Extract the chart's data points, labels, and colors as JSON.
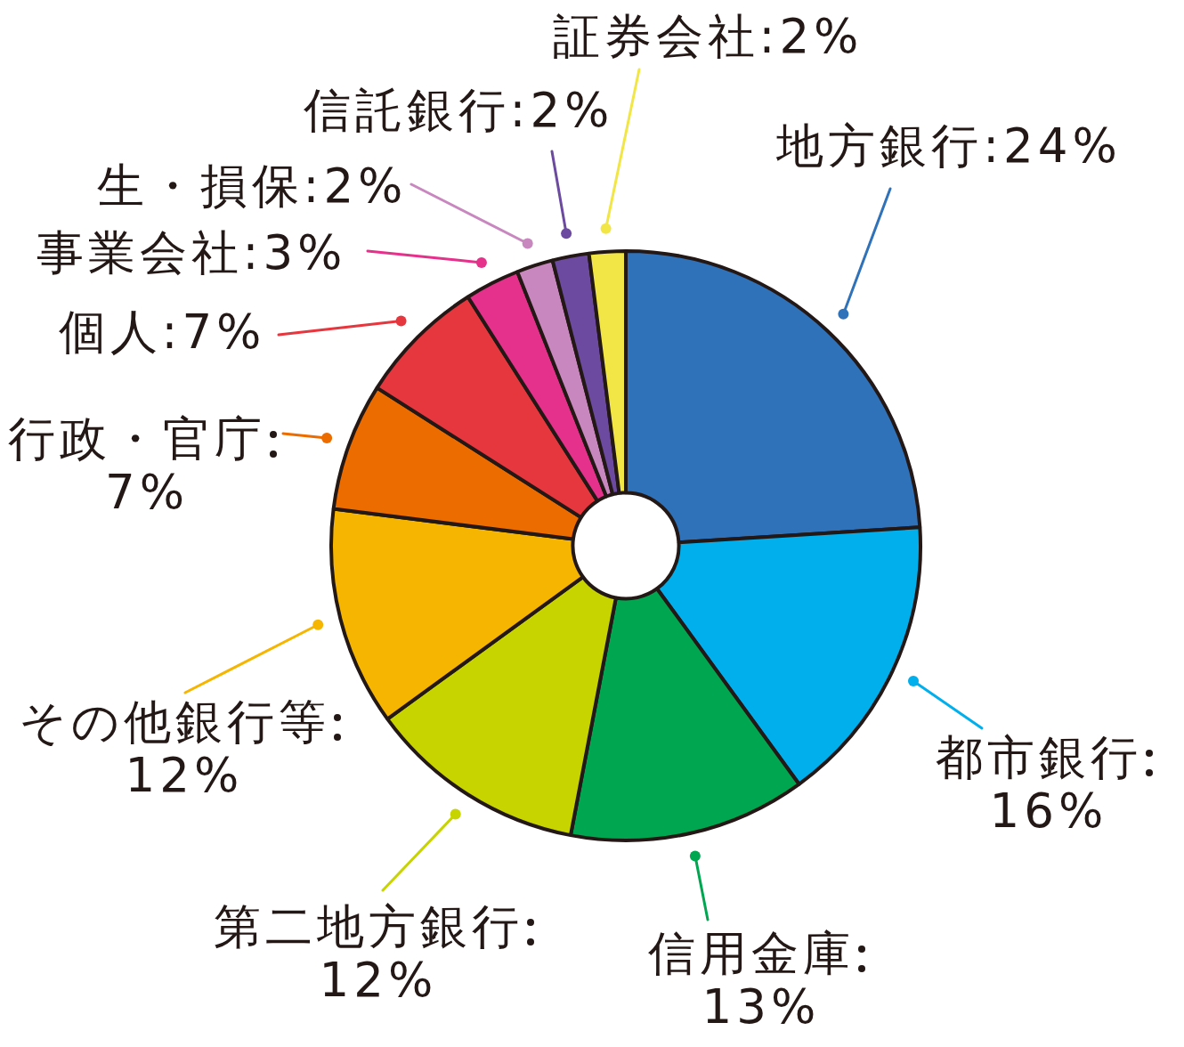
{
  "chart_data": {
    "type": "donut",
    "categories": [
      "地方銀行",
      "都市銀行",
      "信用金庫",
      "第二地方銀行",
      "その他銀行等",
      "行政・官庁",
      "個人",
      "事業会社",
      "生・損保",
      "信託銀行",
      "証券会社"
    ],
    "values": [
      24,
      16,
      13,
      12,
      12,
      7,
      7,
      3,
      2,
      2,
      2
    ],
    "colors": [
      "#2f72b9",
      "#00afec",
      "#00a650",
      "#c8d400",
      "#f6b500",
      "#ec6c00",
      "#e6373e",
      "#e5318b",
      "#c887be",
      "#6b4aa0",
      "#f1e645"
    ],
    "value_labels": [
      "24%",
      "16%",
      "13%",
      "12%",
      "12%",
      "7%",
      "7%",
      "3%",
      "2%",
      "2%",
      "2%"
    ]
  }
}
